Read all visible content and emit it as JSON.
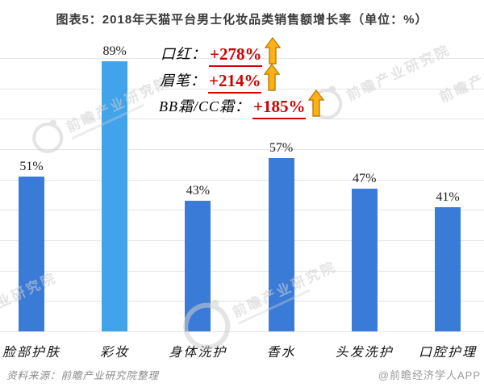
{
  "header": {
    "title": "图表5：2018年天猫平台男士化妆品类销售额增长率（单位：%）"
  },
  "chart_data": {
    "type": "bar",
    "title": "2018年天猫平台男士化妆品类销售额增长率",
    "unit": "%",
    "categories": [
      "脸部护肤",
      "彩妆",
      "身体洗护",
      "香水",
      "头发洗护",
      "口腔护理"
    ],
    "values": [
      51,
      89,
      43,
      57,
      47,
      41
    ],
    "value_labels": [
      "51%",
      "89%",
      "43%",
      "57%",
      "47%",
      "41%"
    ],
    "highlight_index": 1,
    "ylim": [
      0,
      90
    ],
    "gridline_step": 10,
    "grid": true,
    "legend": false,
    "bar_color": "#3b7bd8",
    "highlight_bar_color": "#41a3ea"
  },
  "annotations": [
    {
      "label": "口红：",
      "value": "+278%"
    },
    {
      "label": "眉笔：",
      "value": "+214%"
    },
    {
      "label": "BB霜/CC霜：",
      "value": "+185%"
    }
  ],
  "annotation_style": {
    "value_color": "#d10000",
    "arrow_fill": "#fbb117",
    "arrow_stroke": "#c07f00",
    "arrow_icon": "up-arrow"
  },
  "watermark": {
    "text": "前瞻产业研究院"
  },
  "footer": {
    "source": "资料来源：前瞻产业研究院整理",
    "credit": "@前瞻经济学人APP"
  }
}
